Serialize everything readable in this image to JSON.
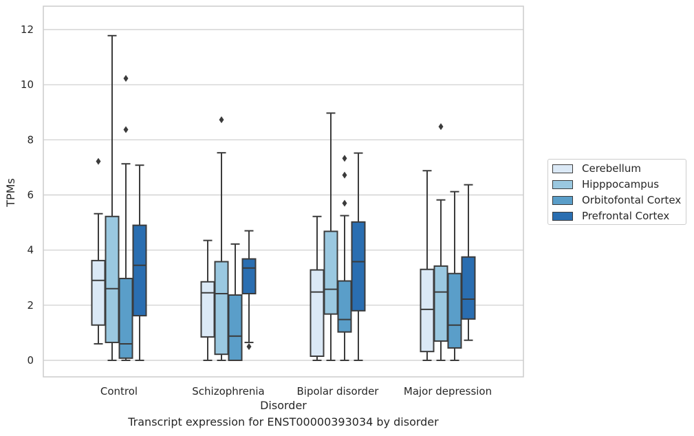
{
  "caption": "Transcript expression for ENST00000393034 by disorder",
  "chart_data": {
    "type": "boxplot",
    "xlabel": "Disorder",
    "ylabel": "TPMs",
    "ylim": [
      -0.6,
      12.85
    ],
    "yticks": [
      0,
      2,
      4,
      6,
      8,
      10,
      12
    ],
    "grid": "horizontal",
    "legend_position": "right",
    "categories": [
      "Control",
      "Schizophrenia",
      "Bipolar disorder",
      "Major depression"
    ],
    "series": [
      {
        "name": "Cerebellum",
        "color": "#dbe9f6",
        "boxes": [
          {
            "whislo": 0.6,
            "q1": 1.28,
            "med": 2.9,
            "q3": 3.62,
            "whishi": 5.32,
            "fliers": [
              7.22
            ]
          },
          {
            "whislo": 0.0,
            "q1": 0.85,
            "med": 2.45,
            "q3": 2.85,
            "whishi": 4.35,
            "fliers": []
          },
          {
            "whislo": 0.0,
            "q1": 0.15,
            "med": 2.48,
            "q3": 3.28,
            "whishi": 5.22,
            "fliers": []
          },
          {
            "whislo": 0.0,
            "q1": 0.32,
            "med": 1.85,
            "q3": 3.3,
            "whishi": 6.88,
            "fliers": []
          }
        ]
      },
      {
        "name": "Hipppocampus",
        "color": "#9ac8e0",
        "boxes": [
          {
            "whislo": 0.0,
            "q1": 0.65,
            "med": 2.6,
            "q3": 5.22,
            "whishi": 11.78,
            "fliers": []
          },
          {
            "whislo": 0.0,
            "q1": 0.22,
            "med": 2.42,
            "q3": 3.58,
            "whishi": 7.53,
            "fliers": [
              8.73
            ]
          },
          {
            "whislo": 0.0,
            "q1": 1.68,
            "med": 2.58,
            "q3": 4.68,
            "whishi": 8.97,
            "fliers": []
          },
          {
            "whislo": 0.0,
            "q1": 0.7,
            "med": 2.48,
            "q3": 3.42,
            "whishi": 5.82,
            "fliers": [
              8.48
            ]
          }
        ]
      },
      {
        "name": "Orbitofontal Cortex",
        "color": "#5a9ec9",
        "boxes": [
          {
            "whislo": 0.0,
            "q1": 0.08,
            "med": 0.6,
            "q3": 2.97,
            "whishi": 7.13,
            "fliers": [
              8.37,
              10.23
            ]
          },
          {
            "whislo": 0.0,
            "q1": 0.0,
            "med": 0.88,
            "q3": 2.37,
            "whishi": 4.22,
            "fliers": []
          },
          {
            "whislo": 0.0,
            "q1": 1.03,
            "med": 1.48,
            "q3": 2.88,
            "whishi": 5.25,
            "fliers": [
              5.7,
              6.72,
              7.33
            ]
          },
          {
            "whislo": 0.0,
            "q1": 0.45,
            "med": 1.28,
            "q3": 3.15,
            "whishi": 6.12,
            "fliers": []
          }
        ]
      },
      {
        "name": "Prefrontal Cortex",
        "color": "#2a6eb1",
        "boxes": [
          {
            "whislo": 0.0,
            "q1": 1.62,
            "med": 3.45,
            "q3": 4.9,
            "whishi": 7.08,
            "fliers": []
          },
          {
            "whislo": 0.65,
            "q1": 2.42,
            "med": 3.35,
            "q3": 3.68,
            "whishi": 4.7,
            "fliers": [
              0.5
            ]
          },
          {
            "whislo": 0.0,
            "q1": 1.8,
            "med": 3.58,
            "q3": 5.02,
            "whishi": 7.52,
            "fliers": []
          },
          {
            "whislo": 0.73,
            "q1": 1.5,
            "med": 2.22,
            "q3": 3.75,
            "whishi": 6.37,
            "fliers": []
          }
        ]
      }
    ]
  }
}
